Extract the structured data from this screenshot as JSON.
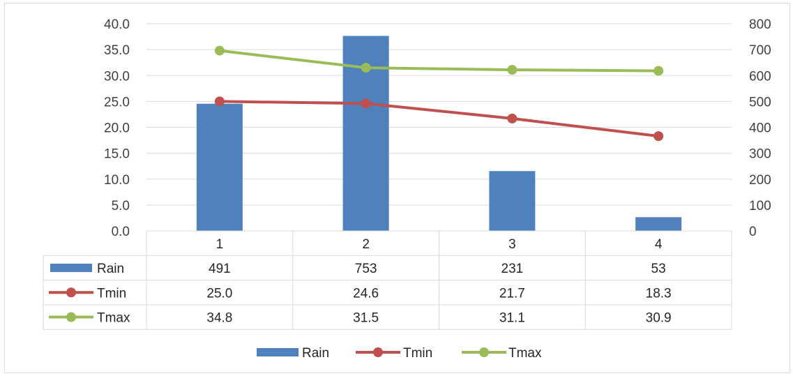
{
  "chart_data": {
    "type": "bar",
    "categories": [
      "1",
      "2",
      "3",
      "4"
    ],
    "series": [
      {
        "name": "Rain",
        "type": "bar",
        "axis": "secondary",
        "color": "#4f81bd",
        "values": [
          491,
          753,
          231,
          53
        ]
      },
      {
        "name": "Tmin",
        "type": "line",
        "axis": "primary",
        "color": "#c0504d",
        "values": [
          25.0,
          24.6,
          21.7,
          18.3
        ]
      },
      {
        "name": "Tmax",
        "type": "line",
        "axis": "primary",
        "color": "#9bbb59",
        "values": [
          34.8,
          31.5,
          31.1,
          30.9
        ]
      }
    ],
    "table_values": {
      "Rain": [
        "491",
        "753",
        "231",
        "53"
      ],
      "Tmin": [
        "25.0",
        "24.6",
        "21.7",
        "18.3"
      ],
      "Tmax": [
        "34.8",
        "31.5",
        "31.1",
        "30.9"
      ]
    },
    "y_left": {
      "ylim": [
        0,
        40
      ],
      "ticks": [
        "0.0",
        "5.0",
        "10.0",
        "15.0",
        "20.0",
        "25.0",
        "30.0",
        "35.0",
        "40.0"
      ]
    },
    "y_right": {
      "ylim": [
        0,
        800
      ],
      "ticks": [
        "0",
        "100",
        "200",
        "300",
        "400",
        "500",
        "600",
        "700",
        "800"
      ]
    },
    "grid": true,
    "legend_position": "bottom",
    "data_table": true
  }
}
